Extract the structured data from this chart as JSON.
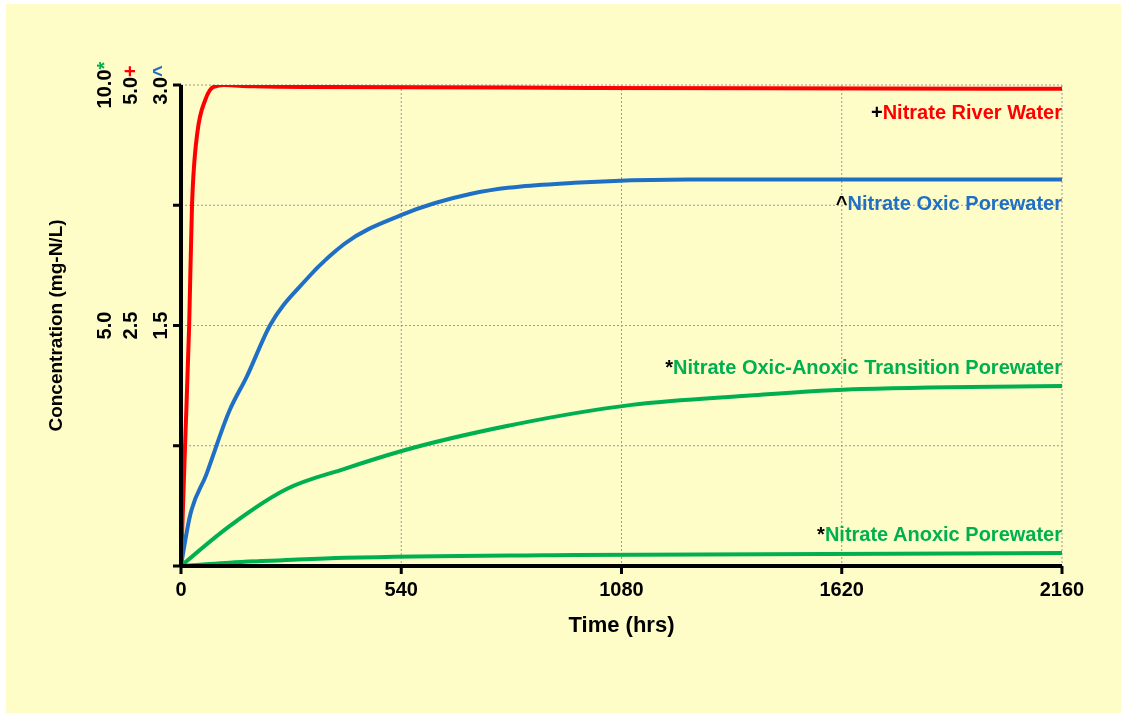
{
  "chart_data": {
    "type": "line",
    "xlabel": "Time (hrs)",
    "ylabel": "Concentration (mg-N/L)",
    "xlim": [
      0,
      2160
    ],
    "xticks": [
      0,
      540,
      1080,
      1620,
      2160
    ],
    "ylim": [
      0,
      10
    ],
    "yticks": [
      {
        "value": 0,
        "label": null
      },
      {
        "value": 2.5,
        "label": null
      },
      {
        "value": 5,
        "label": "5.0"
      },
      {
        "value": 7.5,
        "label": null
      },
      {
        "value": 10,
        "label": "10.0"
      }
    ],
    "y2lim": [
      0,
      5
    ],
    "y2ticks": [
      {
        "value": 0,
        "label": null
      },
      {
        "value": 1.25,
        "label": null
      },
      {
        "value": 2.5,
        "label": "2.5"
      },
      {
        "value": 3.75,
        "label": null
      },
      {
        "value": 5,
        "label": "5.0"
      }
    ],
    "y3lim": [
      0,
      3
    ],
    "y3ticks": [
      {
        "value": 0,
        "label": null
      },
      {
        "value": 0.75,
        "label": null
      },
      {
        "value": 1.5,
        "label": "1.5"
      },
      {
        "value": 2.25,
        "label": null
      },
      {
        "value": 3,
        "label": "3.0"
      }
    ],
    "annotations": [
      "*",
      "+",
      "^"
    ],
    "grid": true,
    "marker": "none",
    "line_style": "solid",
    "legend": false,
    "series": [
      {
        "name": "+Nitrate River Water",
        "color": "#ff0000",
        "axis": "y2",
        "x": [
          0,
          10,
          20,
          27,
          40,
          60,
          80,
          105,
          150,
          300,
          1000,
          2160
        ],
        "values": [
          0,
          1.26,
          2.5,
          3.75,
          4.5,
          4.85,
          4.98,
          5.0,
          4.99,
          4.98,
          4.97,
          4.96
        ]
      },
      {
        "name": "^Nitrate Oxic Porewater",
        "color": "#1f6fc5",
        "axis": "y3",
        "x": [
          0,
          20,
          62,
          119,
          161,
          218,
          301,
          401,
          541,
          709,
          964,
          1245,
          2160
        ],
        "values": [
          0,
          0.29,
          0.57,
          0.97,
          1.18,
          1.5,
          1.77,
          2.01,
          2.19,
          2.32,
          2.39,
          2.41,
          2.41
        ]
      },
      {
        "name": "*Nitrate Oxic-Anoxic Transition Porewater",
        "color": "#00b050",
        "x": [
          0,
          119,
          259,
          401,
          541,
          822,
          1105,
          1386,
          1668,
          2160
        ],
        "values": [
          0,
          0.83,
          1.6,
          2.02,
          2.39,
          2.95,
          3.35,
          3.54,
          3.68,
          3.74
        ]
      },
      {
        "name": "*Nitrate Anoxic Porewater",
        "color": "#00b050",
        "x": [
          0,
          119,
          250,
          401,
          964,
          2160
        ],
        "values": [
          0,
          0.07,
          0.12,
          0.17,
          0.23,
          0.27
        ]
      }
    ]
  }
}
